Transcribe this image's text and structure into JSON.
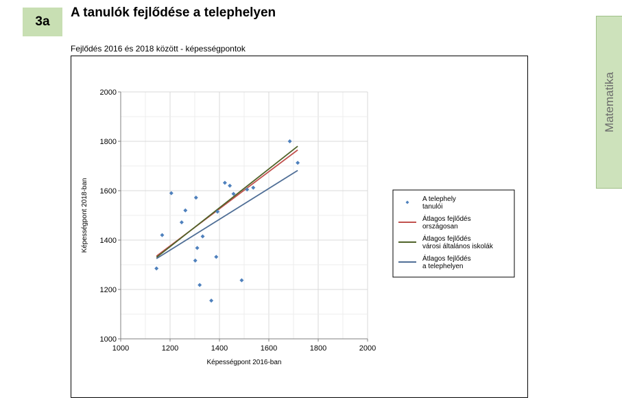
{
  "header": {
    "badge": "3a",
    "title": "A tanulók fejlődése a telephelyen",
    "subtitle": "Fejlődés 2016 és 2018 között - képességpontok"
  },
  "side_tab": {
    "label": "Matematika"
  },
  "chart_data": {
    "type": "scatter",
    "xlabel": "Képességpont 2016-ban",
    "ylabel": "Képességpont 2018-ban",
    "xlim": [
      1000,
      2000
    ],
    "ylim": [
      1000,
      2000
    ],
    "x_ticks": [
      1000,
      1200,
      1400,
      1600,
      1800,
      2000
    ],
    "y_ticks": [
      1000,
      1200,
      1400,
      1600,
      1800,
      2000
    ],
    "grid": true,
    "legend_position": "right",
    "points": {
      "name": "A telephely tanulói",
      "color": "#4f81bd",
      "x": [
        1145,
        1168,
        1205,
        1247,
        1262,
        1302,
        1305,
        1310,
        1320,
        1332,
        1367,
        1387,
        1392,
        1422,
        1442,
        1457,
        1490,
        1512,
        1537,
        1685,
        1717
      ],
      "y": [
        1285,
        1420,
        1590,
        1472,
        1520,
        1317,
        1572,
        1368,
        1218,
        1415,
        1155,
        1332,
        1515,
        1632,
        1620,
        1587,
        1237,
        1605,
        1612,
        1800,
        1713
      ]
    },
    "lines": [
      {
        "name": "Átlagos fejlődés országosan",
        "color": "#c0504d",
        "x": [
          1145,
          1717
        ],
        "y": [
          1335,
          1765
        ]
      },
      {
        "name": "Átlagos fejlődés városi általános iskolák",
        "color": "#4f6228",
        "x": [
          1145,
          1717
        ],
        "y": [
          1330,
          1780
        ]
      },
      {
        "name": "Átlagos fejlődés a telephelyen",
        "color": "#4f6e96",
        "x": [
          1145,
          1717
        ],
        "y": [
          1325,
          1682
        ]
      }
    ],
    "legend": [
      {
        "kind": "marker",
        "color": "#4f81bd",
        "lines": [
          "A telephely",
          "tanulói"
        ]
      },
      {
        "kind": "line",
        "color": "#c0504d",
        "lines": [
          "Átlagos fejlődés",
          "országosan"
        ]
      },
      {
        "kind": "line",
        "color": "#4f6228",
        "lines": [
          "Átlagos fejlődés",
          "városi általános iskolák"
        ]
      },
      {
        "kind": "line",
        "color": "#4f6e96",
        "lines": [
          "Átlagos fejlődés",
          "a telephelyen"
        ]
      }
    ]
  }
}
